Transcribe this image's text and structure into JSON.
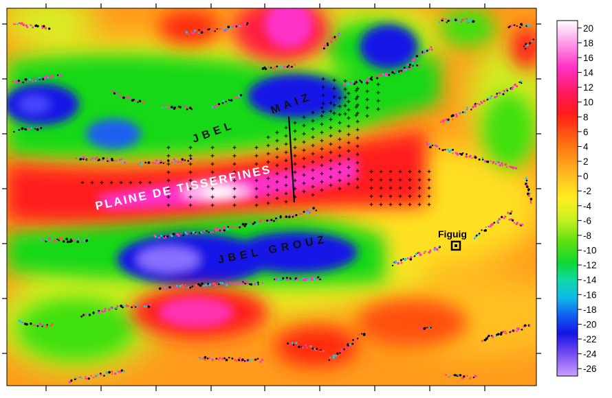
{
  "map": {
    "place_labels": {
      "jbel_maiz_1": "JBEL",
      "jbel_maiz_2": "MAIZ",
      "plaine": "PLAINE DE TISSERFINES",
      "jbel_grouz": "JBEL GROUZ",
      "figuig": "Figuig"
    },
    "colors": {
      "high": "#ff2aa8",
      "mid_high": "#ff1a1a",
      "neutral": "#f6ef1c",
      "mid_low": "#22d800",
      "low": "#1414e6",
      "peak": "#ffffff",
      "trough": "#c08aff",
      "station_black": "#000000",
      "station_magenta": "#ff33cc",
      "station_cyan": "#22c6e6"
    }
  },
  "colorbar": {
    "ticks": [
      "20",
      "18",
      "16",
      "14",
      "12",
      "10",
      "8",
      "6",
      "4",
      "2",
      "0",
      "-2",
      "-4",
      "-6",
      "-8",
      "-10",
      "-12",
      "-14",
      "-16",
      "-18",
      "-20",
      "-22",
      "-24",
      "-26"
    ],
    "max": 21,
    "min": -27
  }
}
